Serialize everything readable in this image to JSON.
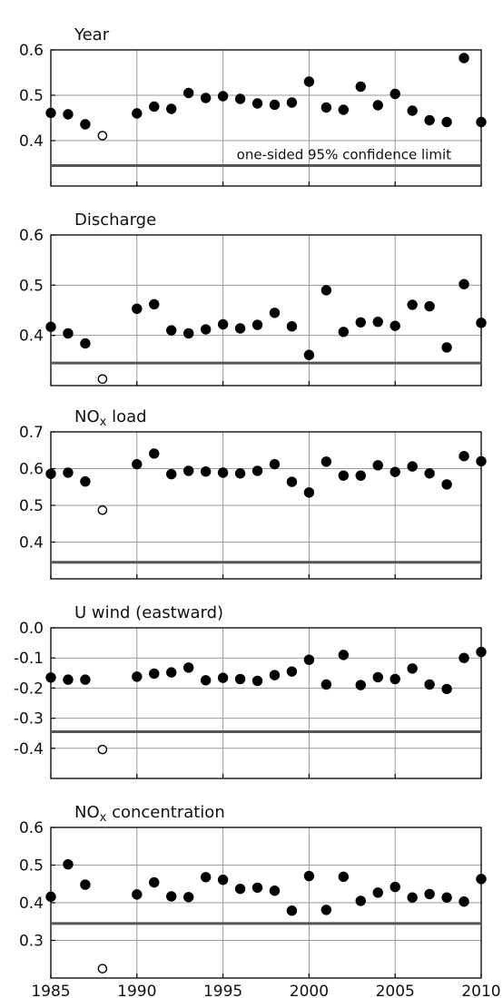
{
  "chart_data": [
    {
      "type": "scatter",
      "title": "Year",
      "title_sub": "",
      "title_suffix": "",
      "xlim": [
        1985,
        2010
      ],
      "ylim": [
        0.3,
        0.6
      ],
      "yticks": [
        "0.4",
        "0.5",
        "0.6"
      ],
      "ytick_values": [
        0.4,
        0.5,
        0.6
      ],
      "threshold": 0.345,
      "threshold_label": "one-sided 95% confidence limit",
      "x": [
        1985,
        1986,
        1987,
        1988,
        1990,
        1991,
        1992,
        1993,
        1994,
        1995,
        1996,
        1997,
        1998,
        1999,
        2000,
        2001,
        2002,
        2003,
        2004,
        2005,
        2006,
        2007,
        2008,
        2009,
        2010
      ],
      "values": [
        0.461,
        0.458,
        0.436,
        0.411,
        0.46,
        0.475,
        0.47,
        0.505,
        0.494,
        0.498,
        0.492,
        0.482,
        0.479,
        0.484,
        0.53,
        0.473,
        0.468,
        0.519,
        0.478,
        0.503,
        0.466,
        0.445,
        0.441,
        0.582,
        0.441
      ],
      "open_points": [
        1988
      ]
    },
    {
      "type": "scatter",
      "title": "Discharge",
      "title_sub": "",
      "title_suffix": "",
      "xlim": [
        1985,
        2010
      ],
      "ylim": [
        0.3,
        0.6
      ],
      "yticks": [
        "0.4",
        "0.5",
        "0.6"
      ],
      "ytick_values": [
        0.4,
        0.5,
        0.6
      ],
      "threshold": 0.345,
      "threshold_label": "",
      "x": [
        1985,
        1986,
        1987,
        1988,
        1990,
        1991,
        1992,
        1993,
        1994,
        1995,
        1996,
        1997,
        1998,
        1999,
        2000,
        2001,
        2002,
        2003,
        2004,
        2005,
        2006,
        2007,
        2008,
        2009,
        2010
      ],
      "values": [
        0.417,
        0.404,
        0.384,
        0.313,
        0.453,
        0.462,
        0.41,
        0.404,
        0.412,
        0.422,
        0.414,
        0.421,
        0.445,
        0.418,
        0.361,
        0.49,
        0.407,
        0.426,
        0.427,
        0.419,
        0.461,
        0.458,
        0.376,
        0.502,
        0.425
      ],
      "open_points": [
        1988
      ]
    },
    {
      "type": "scatter",
      "title": "NO",
      "title_sub": "x",
      "title_suffix": " load",
      "xlim": [
        1985,
        2010
      ],
      "ylim": [
        0.3,
        0.7
      ],
      "yticks": [
        "0.4",
        "0.5",
        "0.6",
        "0.7"
      ],
      "ytick_values": [
        0.4,
        0.5,
        0.6,
        0.7
      ],
      "threshold": 0.345,
      "threshold_label": "",
      "x": [
        1985,
        1986,
        1987,
        1988,
        1990,
        1991,
        1992,
        1993,
        1994,
        1995,
        1996,
        1997,
        1998,
        1999,
        2000,
        2001,
        2002,
        2003,
        2004,
        2005,
        2006,
        2007,
        2008,
        2009,
        2010
      ],
      "values": [
        0.586,
        0.589,
        0.565,
        0.487,
        0.612,
        0.641,
        0.585,
        0.594,
        0.592,
        0.589,
        0.587,
        0.594,
        0.612,
        0.564,
        0.535,
        0.619,
        0.581,
        0.581,
        0.609,
        0.591,
        0.606,
        0.587,
        0.557,
        0.634,
        0.62
      ],
      "open_points": [
        1988
      ]
    },
    {
      "type": "scatter",
      "title": "U wind (eastward)",
      "title_sub": "",
      "title_suffix": "",
      "xlim": [
        1985,
        2010
      ],
      "ylim": [
        -0.5,
        0.0
      ],
      "yticks": [
        "-0.4",
        "-0.3",
        "-0.2",
        "-0.1",
        "0.0"
      ],
      "ytick_values": [
        -0.4,
        -0.3,
        -0.2,
        -0.1,
        0.0
      ],
      "threshold": -0.345,
      "threshold_label": "",
      "x": [
        1985,
        1986,
        1987,
        1988,
        1990,
        1991,
        1992,
        1993,
        1994,
        1995,
        1996,
        1997,
        1998,
        1999,
        2000,
        2001,
        2002,
        2003,
        2004,
        2005,
        2006,
        2007,
        2008,
        2009,
        2010
      ],
      "values": [
        -0.165,
        -0.172,
        -0.172,
        -0.404,
        -0.162,
        -0.152,
        -0.148,
        -0.132,
        -0.174,
        -0.166,
        -0.17,
        -0.176,
        -0.157,
        -0.145,
        -0.106,
        -0.188,
        -0.09,
        -0.19,
        -0.164,
        -0.17,
        -0.135,
        -0.188,
        -0.203,
        -0.1,
        -0.08
      ],
      "open_points": [
        1988
      ]
    },
    {
      "type": "scatter",
      "title": "NO",
      "title_sub": "x",
      "title_suffix": " concentration",
      "xlim": [
        1985,
        2010
      ],
      "ylim": [
        0.2,
        0.6
      ],
      "yticks": [
        "0.3",
        "0.4",
        "0.5",
        "0.6"
      ],
      "ytick_values": [
        0.3,
        0.4,
        0.5,
        0.6
      ],
      "xticks": [
        "1985",
        "1990",
        "1995",
        "2000",
        "2005",
        "2010"
      ],
      "xtick_values": [
        1985,
        1990,
        1995,
        2000,
        2005,
        2010
      ],
      "threshold": 0.345,
      "threshold_label": "",
      "x": [
        1985,
        1986,
        1987,
        1988,
        1990,
        1991,
        1992,
        1993,
        1994,
        1995,
        1996,
        1997,
        1998,
        1999,
        2000,
        2001,
        2002,
        2003,
        2004,
        2005,
        2006,
        2007,
        2008,
        2009,
        2010
      ],
      "values": [
        0.416,
        0.502,
        0.448,
        0.225,
        0.422,
        0.454,
        0.417,
        0.415,
        0.468,
        0.461,
        0.437,
        0.44,
        0.432,
        0.379,
        0.471,
        0.381,
        0.469,
        0.405,
        0.427,
        0.442,
        0.414,
        0.423,
        0.414,
        0.403,
        0.463
      ],
      "open_points": [
        1988
      ]
    }
  ]
}
